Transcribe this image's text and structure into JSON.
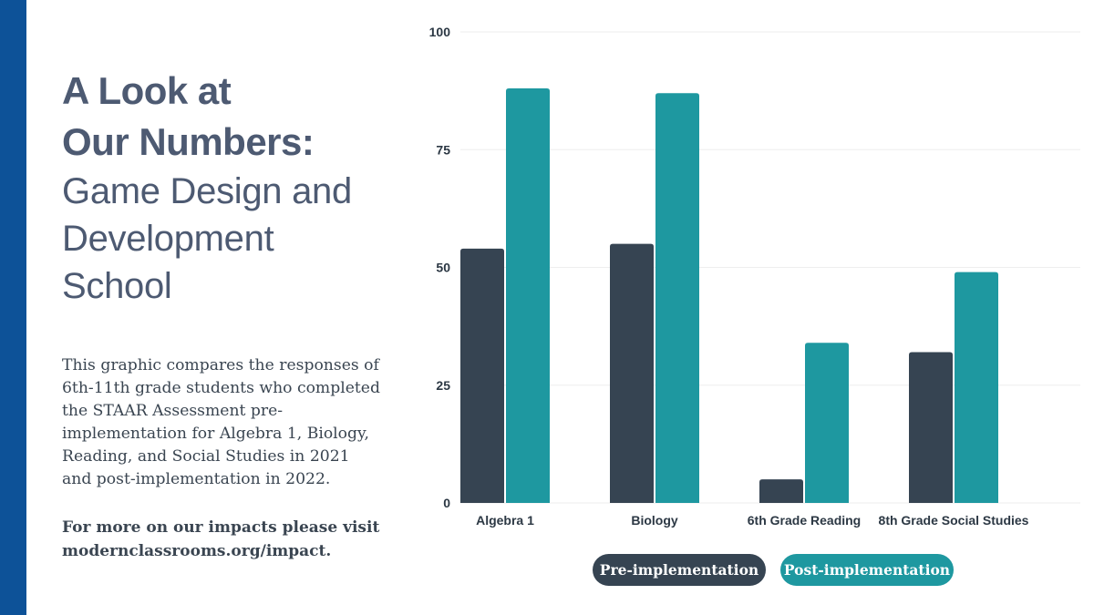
{
  "colors": {
    "accent_bar": "#0d5298",
    "title": "#4d5a72",
    "body_text": "#3a4551",
    "pre": "#364452",
    "post": "#1e98a0",
    "axis_text": "#2c3844",
    "grid": "#eeeeee"
  },
  "title": {
    "line1": "A Look at",
    "line2": "Our Numbers:",
    "line3": "Game Design and",
    "line4": "Development",
    "line5": "School"
  },
  "description": "This graphic compares the responses of 6th-11th grade students who completed the STAAR Assessment pre-implementation for Algebra 1, Biology, Reading, and Social Studies in 2021 and post-implementation in 2022.",
  "cta": {
    "line1": "For more on our impacts please visit",
    "line2": "modernclassrooms.org/impact."
  },
  "chart_data": {
    "type": "bar",
    "categories": [
      "Algebra 1",
      "Biology",
      "6th Grade Reading",
      "8th Grade Social Studies"
    ],
    "series": [
      {
        "name": "Pre-implementation",
        "values": [
          54,
          55,
          5,
          32
        ]
      },
      {
        "name": "Post-implementation",
        "values": [
          88,
          87,
          34,
          49
        ]
      }
    ],
    "ylim": [
      0,
      100
    ],
    "yticks": [
      0,
      25,
      50,
      75,
      100
    ],
    "grid": true,
    "legend": "bottom",
    "title": "",
    "xlabel": "",
    "ylabel": ""
  }
}
